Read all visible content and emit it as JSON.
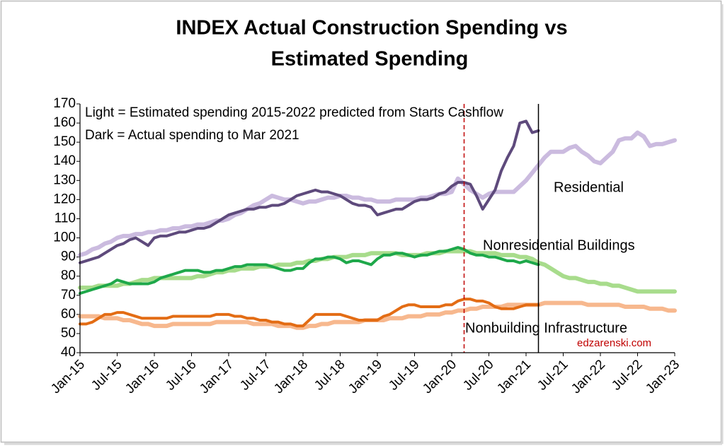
{
  "chart_data": {
    "type": "line",
    "title": "INDEX Actual Construction Spending vs",
    "subtitle": "Estimated Spending",
    "annotations": [
      "Light = Estimated spending 2015-2022 predicted from Starts Cashflow",
      "Dark = Actual spending to  Mar  2021",
      "Residential",
      "Nonresidential Buildings",
      "Nonbuilding Infrastructure",
      "edzarenski.com"
    ],
    "categories": [
      "Jan-15",
      null,
      null,
      null,
      null,
      null,
      "Jul-15",
      null,
      null,
      null,
      null,
      null,
      "Jan-16",
      null,
      null,
      null,
      null,
      null,
      "Jul-16",
      null,
      null,
      null,
      null,
      null,
      "Jan-17",
      null,
      null,
      null,
      null,
      null,
      "Jul-17",
      null,
      null,
      null,
      null,
      null,
      "Jan-18",
      null,
      null,
      null,
      null,
      null,
      "Jul-18",
      null,
      null,
      null,
      null,
      null,
      "Jan-19",
      null,
      null,
      null,
      null,
      null,
      "Jul-19",
      null,
      null,
      null,
      null,
      null,
      "Jan-20",
      null,
      null,
      null,
      null,
      null,
      "Jul-20",
      null,
      null,
      null,
      null,
      null,
      "Jan-21",
      null,
      null,
      null,
      null,
      null,
      "Jul-21",
      null,
      null,
      null,
      null,
      null,
      "Jan-22",
      null,
      null,
      null,
      null,
      null,
      "Jul-22",
      null,
      null,
      null,
      null,
      null,
      "Jan-23"
    ],
    "series": [
      {
        "color": "#cbbbdf",
        "width": 6,
        "values": [
          91,
          92,
          94,
          95,
          97,
          98,
          100,
          101,
          101,
          102,
          102,
          103,
          103,
          104,
          104,
          105,
          105,
          106,
          106,
          107,
          107,
          108,
          109,
          109,
          110,
          112,
          113,
          115,
          117,
          118,
          120,
          122,
          121,
          120,
          120,
          119,
          118,
          119,
          119,
          120,
          121,
          121,
          122,
          122,
          121,
          121,
          120,
          120,
          119,
          119,
          119,
          120,
          120,
          120,
          120,
          121,
          121,
          122,
          123,
          123,
          124,
          131,
          128,
          125,
          123,
          121,
          123,
          124,
          124,
          124,
          124,
          127,
          130,
          134,
          138,
          142,
          145,
          145,
          145,
          147,
          148,
          145,
          143,
          140,
          139,
          142,
          145,
          151,
          152,
          152,
          155,
          153,
          148,
          149,
          149,
          150,
          151
        ]
      },
      {
        "color": "#5e4a7c",
        "width": 4,
        "values": [
          87,
          88,
          89,
          90,
          92,
          94,
          96,
          97,
          99,
          100,
          98,
          96,
          100,
          101,
          101,
          102,
          103,
          103,
          104,
          105,
          105,
          106,
          108,
          110,
          112,
          113,
          114,
          115,
          115,
          116,
          116,
          117,
          117,
          118,
          120,
          122,
          123,
          124,
          125,
          124,
          124,
          123,
          122,
          120,
          118,
          117,
          117,
          116,
          112,
          113,
          114,
          115,
          115,
          117,
          119,
          120,
          120,
          121,
          123,
          124,
          127,
          129,
          129,
          128,
          122,
          115,
          120,
          125,
          135,
          142,
          148,
          160,
          161,
          155,
          156,
          null,
          null,
          null,
          null,
          null,
          null,
          null,
          null,
          null,
          null,
          null,
          null,
          null,
          null,
          null,
          null,
          null,
          null,
          null,
          null,
          null,
          null
        ]
      },
      {
        "color": "#a8dc8c",
        "width": 6,
        "values": [
          74,
          74,
          74,
          75,
          75,
          75,
          75,
          76,
          76,
          77,
          78,
          78,
          79,
          79,
          79,
          79,
          79,
          79,
          79,
          80,
          80,
          81,
          82,
          82,
          83,
          83,
          84,
          84,
          84,
          85,
          85,
          85,
          86,
          86,
          86,
          87,
          87,
          88,
          88,
          89,
          89,
          90,
          90,
          90,
          91,
          91,
          91,
          92,
          92,
          92,
          92,
          92,
          91,
          91,
          91,
          91,
          92,
          92,
          92,
          93,
          93,
          93,
          93,
          93,
          92,
          92,
          92,
          92,
          91,
          91,
          91,
          90,
          90,
          89,
          87,
          86,
          84,
          82,
          80,
          79,
          79,
          78,
          77,
          77,
          76,
          76,
          75,
          75,
          74,
          73,
          72,
          72,
          72,
          72,
          72,
          72,
          72
        ]
      },
      {
        "color": "#1ea84a",
        "width": 4,
        "values": [
          71,
          72,
          73,
          74,
          75,
          76,
          78,
          77,
          76,
          76,
          76,
          76,
          77,
          79,
          80,
          81,
          82,
          83,
          83,
          83,
          82,
          82,
          83,
          83,
          84,
          85,
          85,
          86,
          86,
          86,
          86,
          85,
          84,
          83,
          83,
          84,
          84,
          87,
          89,
          89,
          90,
          90,
          89,
          87,
          88,
          88,
          87,
          86,
          89,
          91,
          91,
          92,
          92,
          91,
          90,
          91,
          91,
          92,
          93,
          93,
          94,
          95,
          94,
          92,
          91,
          91,
          90,
          90,
          89,
          88,
          88,
          87,
          88,
          87,
          86,
          null,
          null,
          null,
          null,
          null,
          null,
          null,
          null,
          null,
          null,
          null,
          null,
          null,
          null,
          null,
          null,
          null,
          null,
          null,
          null,
          null,
          null
        ]
      },
      {
        "color": "#f7b88e",
        "width": 6,
        "values": [
          59,
          59,
          59,
          59,
          58,
          58,
          58,
          57,
          57,
          56,
          55,
          55,
          54,
          54,
          54,
          55,
          55,
          55,
          55,
          55,
          55,
          55,
          56,
          56,
          56,
          56,
          56,
          56,
          55,
          55,
          55,
          55,
          54,
          54,
          54,
          53,
          53,
          54,
          54,
          55,
          55,
          56,
          56,
          56,
          56,
          56,
          57,
          57,
          57,
          57,
          58,
          58,
          58,
          59,
          59,
          59,
          60,
          60,
          60,
          61,
          61,
          62,
          62,
          63,
          63,
          64,
          64,
          64,
          64,
          65,
          65,
          65,
          65,
          65,
          65,
          66,
          66,
          66,
          66,
          66,
          66,
          66,
          65,
          65,
          65,
          65,
          65,
          65,
          64,
          64,
          64,
          64,
          63,
          63,
          63,
          62,
          62
        ]
      },
      {
        "color": "#e36c14",
        "width": 4,
        "values": [
          55,
          55,
          56,
          58,
          60,
          60,
          61,
          61,
          60,
          59,
          58,
          58,
          58,
          58,
          58,
          59,
          59,
          59,
          59,
          59,
          59,
          59,
          60,
          60,
          60,
          59,
          59,
          58,
          58,
          57,
          57,
          56,
          56,
          55,
          55,
          54,
          54,
          57,
          60,
          60,
          60,
          60,
          60,
          59,
          58,
          57,
          57,
          57,
          57,
          59,
          60,
          62,
          64,
          65,
          65,
          64,
          64,
          64,
          64,
          65,
          65,
          67,
          68,
          68,
          67,
          67,
          66,
          64,
          63,
          63,
          63,
          64,
          65,
          65,
          65,
          null,
          null,
          null,
          null,
          null,
          null,
          null,
          null,
          null,
          null,
          null,
          null,
          null,
          null,
          null,
          null,
          null,
          null,
          null,
          null,
          null,
          null
        ]
      }
    ],
    "vlines": [
      {
        "x": 62,
        "color": "#c00000",
        "dash": true
      },
      {
        "x": 74,
        "color": "#000000",
        "dash": false
      }
    ],
    "ylim": [
      40,
      170
    ],
    "yticks": [
      40,
      50,
      60,
      70,
      80,
      90,
      100,
      110,
      120,
      130,
      140,
      150,
      160,
      170
    ],
    "grid": false
  }
}
